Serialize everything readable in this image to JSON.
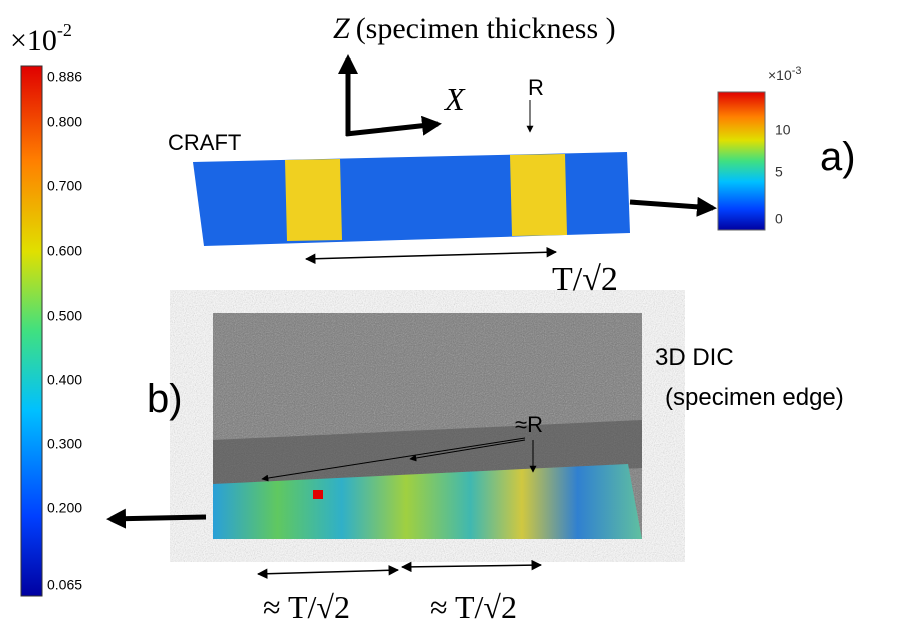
{
  "left_colorbar": {
    "multiplier": "×10",
    "exponent": "-2",
    "labels": [
      "0.886",
      "0.800",
      "0.700",
      "0.600",
      "0.500",
      "0.400",
      "0.300",
      "0.200",
      "0.065"
    ]
  },
  "panel_a": {
    "axis_z": "Z",
    "axis_z_caption": "(specimen  thickness )",
    "axis_x": "X",
    "marker": "R",
    "label": "CRAFT",
    "panel": "a)",
    "length": "T/√2",
    "colorbar": {
      "multiplier": "×10",
      "exponent": "-3",
      "labels": [
        "10",
        "5",
        "0"
      ]
    }
  },
  "panel_b": {
    "panel": "b)",
    "title": "3D DIC",
    "subtitle": "(specimen edge)",
    "marker": "≈R",
    "lengths": [
      "≈ T/√2",
      "≈ T/√2"
    ]
  }
}
